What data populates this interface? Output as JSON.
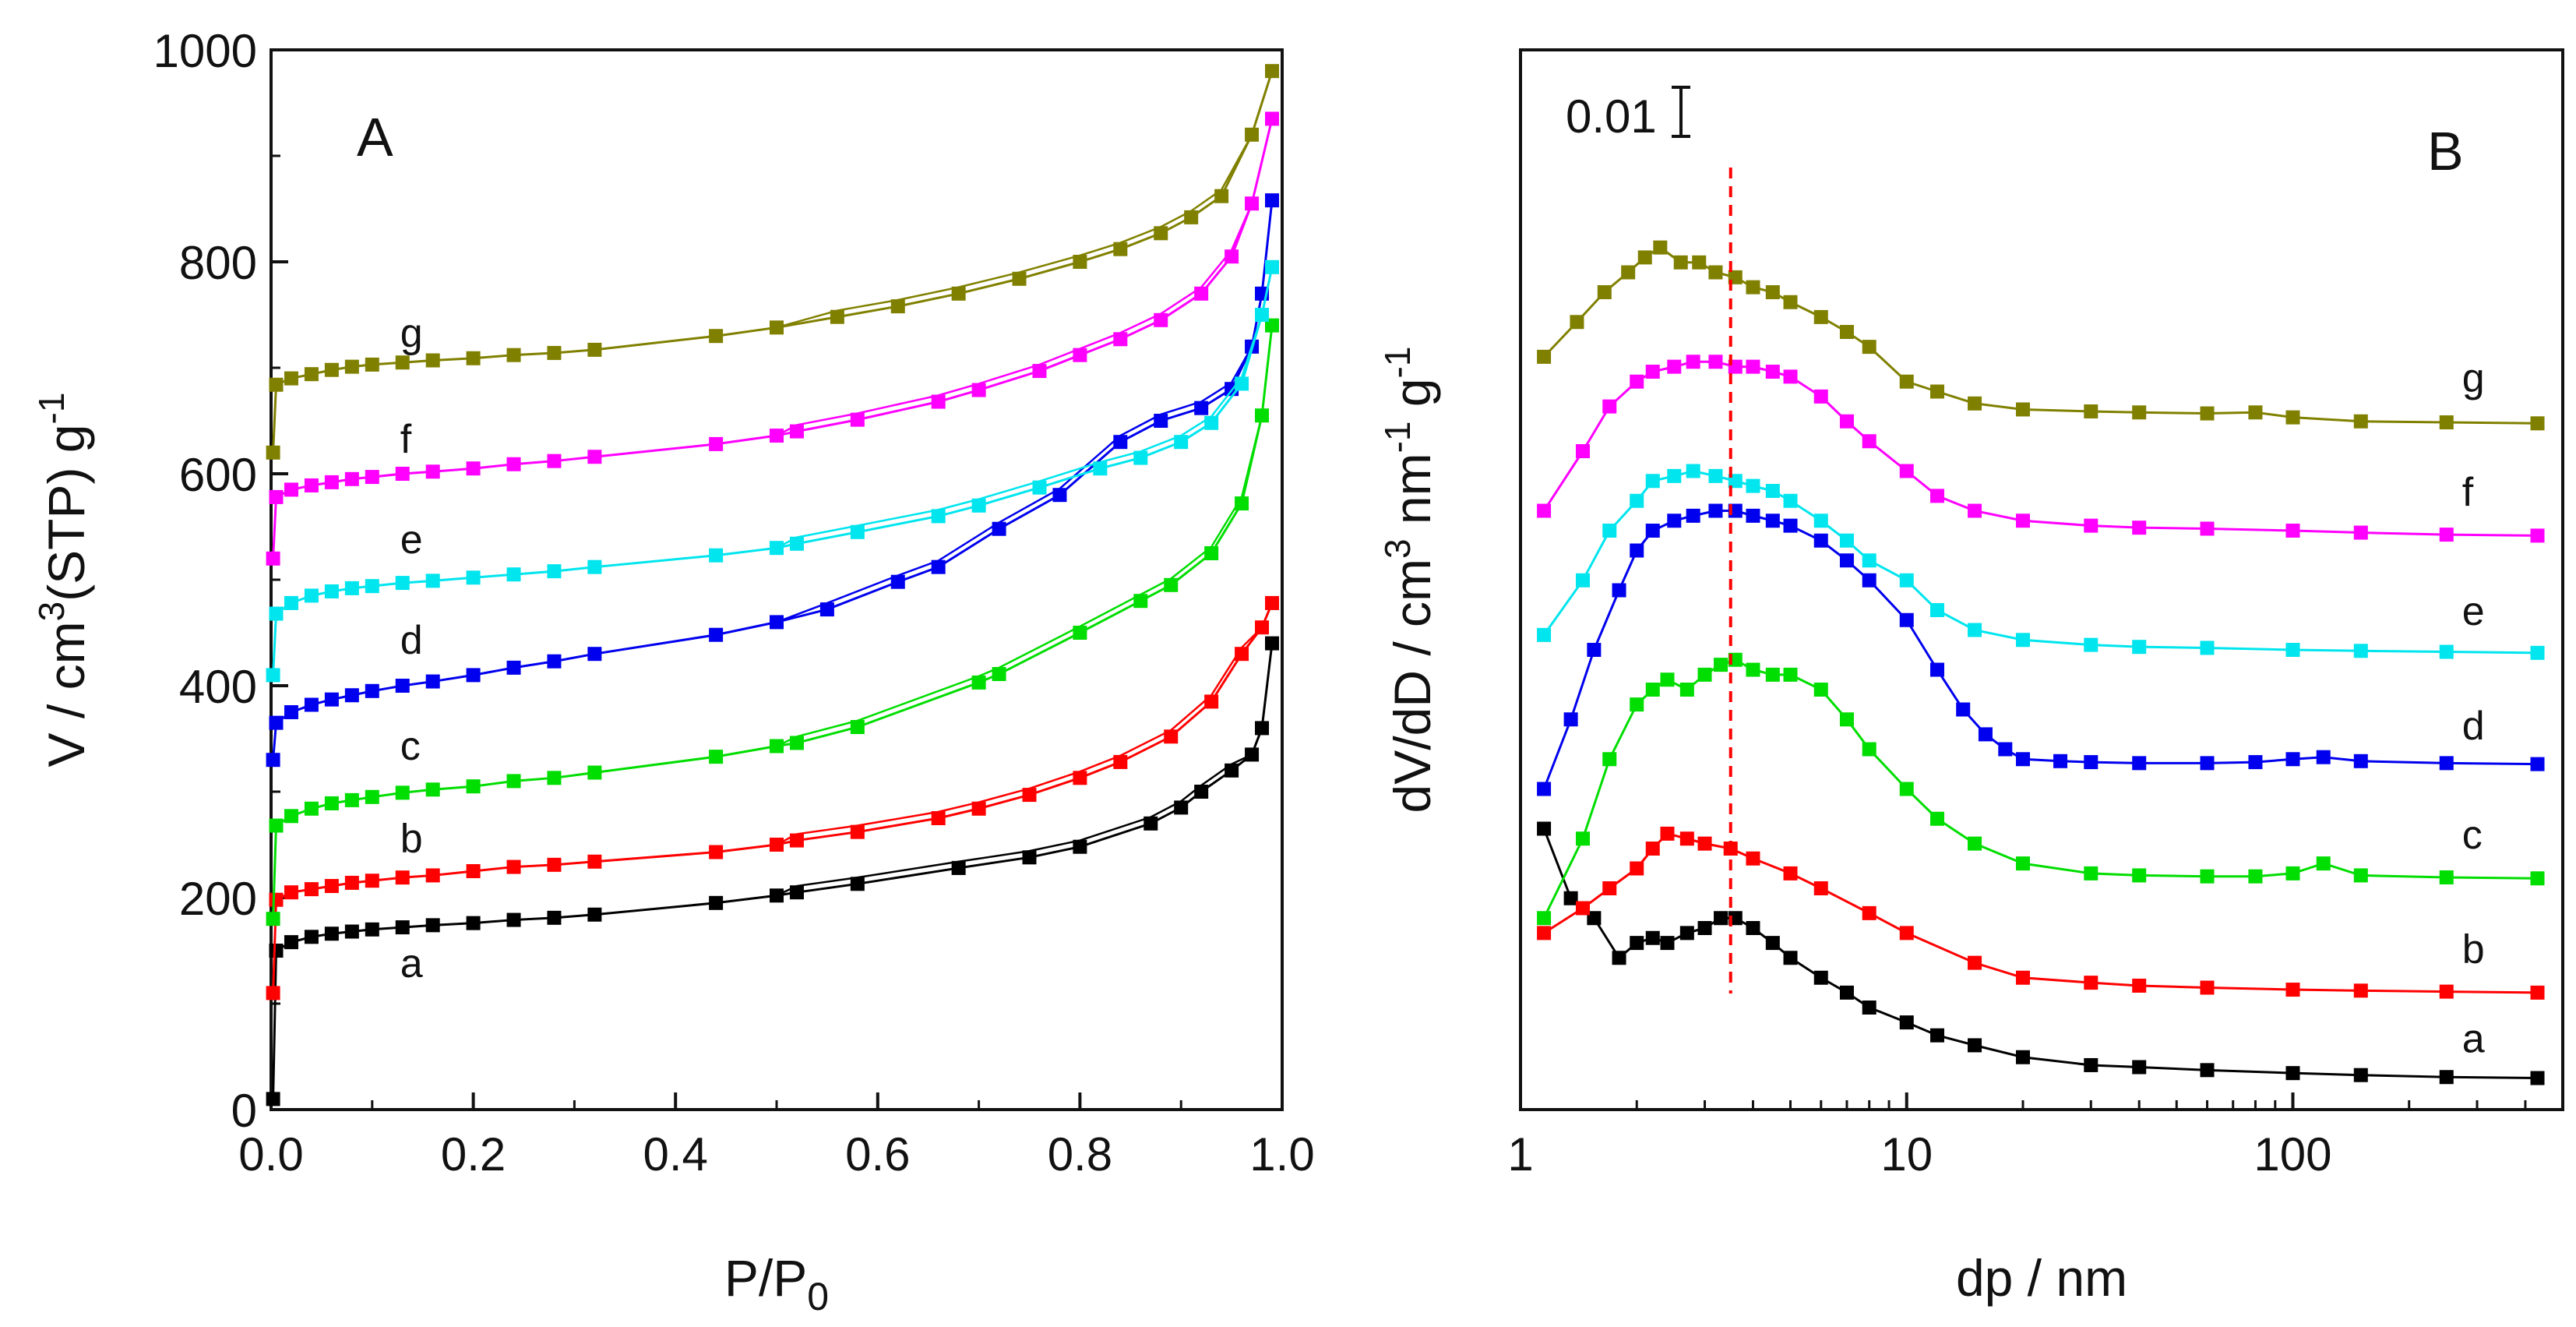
{
  "chart_data": [
    {
      "type": "line",
      "panel_label": "A",
      "xlabel_main": "P/P",
      "xlabel_sub": "0",
      "ylabel_prefix": "V / cm",
      "ylabel_sup1": "3",
      "ylabel_mid": "(STP) g",
      "ylabel_sup2": "-1",
      "xlim": [
        0.0,
        1.0
      ],
      "ylim": [
        0,
        1000
      ],
      "xticks": [
        0.0,
        0.2,
        0.4,
        0.6,
        0.8,
        1.0
      ],
      "xtick_labels": [
        "0.0",
        "0.2",
        "0.4",
        "0.6",
        "0.8",
        "1.0"
      ],
      "yticks": [
        0,
        200,
        400,
        600,
        800,
        1000
      ],
      "ytick_labels": [
        "0",
        "200",
        "400",
        "600",
        "800",
        "1000"
      ],
      "series": [
        {
          "name": "a",
          "color": "#000000",
          "x": [
            0.002,
            0.005,
            0.02,
            0.04,
            0.06,
            0.08,
            0.1,
            0.13,
            0.16,
            0.2,
            0.24,
            0.28,
            0.32,
            0.44,
            0.5,
            0.52,
            0.58,
            0.68,
            0.75,
            0.8,
            0.87,
            0.9,
            0.92,
            0.95,
            0.97,
            0.98,
            0.99
          ],
          "y": [
            10,
            150,
            158,
            163,
            166,
            168,
            170,
            172,
            174,
            176,
            179,
            181,
            184,
            195,
            202,
            205,
            213,
            228,
            238,
            248,
            270,
            285,
            300,
            320,
            335,
            360,
            440
          ]
        },
        {
          "name": "b",
          "color": "#ff0000",
          "x": [
            0.002,
            0.005,
            0.02,
            0.04,
            0.06,
            0.08,
            0.1,
            0.13,
            0.16,
            0.2,
            0.24,
            0.28,
            0.32,
            0.44,
            0.5,
            0.52,
            0.58,
            0.66,
            0.7,
            0.75,
            0.8,
            0.84,
            0.89,
            0.93,
            0.96,
            0.98,
            0.99
          ],
          "y": [
            110,
            198,
            205,
            208,
            211,
            214,
            216,
            219,
            221,
            225,
            229,
            231,
            234,
            243,
            250,
            254,
            262,
            275,
            284,
            297,
            313,
            328,
            352,
            385,
            430,
            455,
            478
          ]
        },
        {
          "name": "c",
          "color": "#00dd00",
          "x": [
            0.002,
            0.005,
            0.02,
            0.04,
            0.06,
            0.08,
            0.1,
            0.13,
            0.16,
            0.2,
            0.24,
            0.28,
            0.32,
            0.44,
            0.5,
            0.52,
            0.58,
            0.7,
            0.72,
            0.8,
            0.86,
            0.89,
            0.93,
            0.96,
            0.98,
            0.99
          ],
          "y": [
            180,
            268,
            277,
            284,
            289,
            292,
            295,
            299,
            302,
            305,
            310,
            313,
            318,
            333,
            343,
            346,
            361,
            403,
            411,
            450,
            480,
            495,
            525,
            572,
            655,
            740
          ]
        },
        {
          "name": "d",
          "color": "#0000ee",
          "x": [
            0.002,
            0.005,
            0.02,
            0.04,
            0.06,
            0.08,
            0.1,
            0.13,
            0.16,
            0.2,
            0.24,
            0.28,
            0.32,
            0.44,
            0.5,
            0.55,
            0.62,
            0.66,
            0.72,
            0.78,
            0.84,
            0.88,
            0.92,
            0.95,
            0.97,
            0.98,
            0.99
          ],
          "y": [
            330,
            365,
            375,
            382,
            387,
            391,
            395,
            400,
            404,
            410,
            417,
            423,
            430,
            448,
            460,
            472,
            498,
            512,
            548,
            580,
            630,
            650,
            662,
            680,
            720,
            770,
            858
          ]
        },
        {
          "name": "e",
          "color": "#00e5ee",
          "x": [
            0.002,
            0.005,
            0.02,
            0.04,
            0.06,
            0.08,
            0.1,
            0.13,
            0.16,
            0.2,
            0.24,
            0.28,
            0.32,
            0.44,
            0.5,
            0.52,
            0.58,
            0.66,
            0.7,
            0.76,
            0.82,
            0.86,
            0.9,
            0.93,
            0.96,
            0.98,
            0.99
          ],
          "y": [
            410,
            468,
            478,
            485,
            489,
            492,
            494,
            497,
            499,
            502,
            505,
            508,
            512,
            523,
            530,
            534,
            545,
            560,
            570,
            587,
            605,
            615,
            630,
            648,
            685,
            750,
            795
          ]
        },
        {
          "name": "f",
          "color": "#ff00ff",
          "x": [
            0.002,
            0.005,
            0.02,
            0.04,
            0.06,
            0.08,
            0.1,
            0.13,
            0.16,
            0.2,
            0.24,
            0.28,
            0.32,
            0.44,
            0.5,
            0.52,
            0.58,
            0.66,
            0.7,
            0.76,
            0.8,
            0.84,
            0.88,
            0.92,
            0.95,
            0.97,
            0.99
          ],
          "y": [
            520,
            578,
            585,
            589,
            592,
            595,
            597,
            600,
            602,
            605,
            609,
            612,
            616,
            628,
            636,
            640,
            651,
            668,
            679,
            697,
            712,
            727,
            745,
            770,
            805,
            855,
            935
          ]
        },
        {
          "name": "g",
          "color": "#808000",
          "x": [
            0.002,
            0.005,
            0.02,
            0.04,
            0.06,
            0.08,
            0.1,
            0.13,
            0.16,
            0.2,
            0.24,
            0.28,
            0.32,
            0.44,
            0.5,
            0.56,
            0.62,
            0.68,
            0.74,
            0.8,
            0.84,
            0.88,
            0.91,
            0.94,
            0.97,
            0.99
          ],
          "y": [
            620,
            684,
            690,
            694,
            698,
            701,
            703,
            705,
            707,
            709,
            712,
            714,
            717,
            730,
            738,
            748,
            758,
            770,
            784,
            800,
            812,
            827,
            842,
            862,
            920,
            980
          ]
        }
      ],
      "series_label_anchor": [
        {
          "name": "a",
          "x": 0.12,
          "y": 125
        },
        {
          "name": "b",
          "x": 0.12,
          "y": 243
        },
        {
          "name": "c",
          "x": 0.12,
          "y": 330
        },
        {
          "name": "d",
          "x": 0.12,
          "y": 430
        },
        {
          "name": "e",
          "x": 0.12,
          "y": 525
        },
        {
          "name": "f",
          "x": 0.12,
          "y": 620
        },
        {
          "name": "g",
          "x": 0.12,
          "y": 720
        }
      ]
    },
    {
      "type": "line",
      "panel_label": "B",
      "x_scale": "log",
      "xlabel": "dp / nm",
      "ylabel_prefix": "dV/dD / cm",
      "ylabel_sup1": "3",
      "ylabel_mid": " nm",
      "ylabel_sup2": "-1",
      "ylabel_end": " g",
      "ylabel_sup3": "-1",
      "scale_bar_label": "0.01",
      "xlim": [
        1,
        500
      ],
      "ylim": [
        0,
        100
      ],
      "xticks": [
        1,
        10,
        100
      ],
      "xtick_labels": [
        "1",
        "10",
        "100"
      ],
      "dashed_line_x": 3.5,
      "series": [
        {
          "name": "a",
          "color": "#000000",
          "x": [
            1.15,
            1.35,
            1.55,
            1.8,
            2.0,
            2.2,
            2.4,
            2.7,
            3.0,
            3.3,
            3.6,
            4.0,
            4.5,
            5.0,
            6.0,
            7.0,
            8.0,
            10,
            12,
            15,
            20,
            30,
            40,
            60,
            100,
            150,
            250,
            430
          ],
          "y": [
            26,
            19,
            17,
            13,
            14.5,
            15,
            14.5,
            15.5,
            16,
            17,
            17,
            16,
            14.5,
            13,
            11,
            9.5,
            8,
            6.5,
            5.2,
            4.2,
            3,
            2.2,
            2,
            1.7,
            1.4,
            1.2,
            1.0,
            0.9
          ]
        },
        {
          "name": "b",
          "color": "#ff0000",
          "x": [
            1.15,
            1.45,
            1.7,
            2.0,
            2.2,
            2.4,
            2.7,
            3.0,
            3.5,
            4.0,
            5.0,
            6.0,
            8.0,
            10,
            15,
            20,
            30,
            40,
            60,
            100,
            150,
            250,
            430
          ],
          "y": [
            15.5,
            18,
            20,
            22,
            24,
            25.5,
            25,
            24.5,
            24,
            23,
            21.5,
            20,
            17.5,
            15.5,
            12.5,
            11,
            10.5,
            10.2,
            10,
            9.8,
            9.7,
            9.6,
            9.5
          ]
        },
        {
          "name": "c",
          "color": "#00dd00",
          "x": [
            1.15,
            1.45,
            1.7,
            2.0,
            2.2,
            2.4,
            2.7,
            3.0,
            3.3,
            3.6,
            4.0,
            4.5,
            5.0,
            6.0,
            7.0,
            8.0,
            10,
            12,
            15,
            20,
            30,
            40,
            60,
            80,
            100,
            120,
            150,
            250,
            430
          ],
          "y": [
            17,
            25,
            33,
            38.5,
            40,
            41,
            40,
            41.5,
            42.5,
            43,
            42,
            41.5,
            41.5,
            40,
            37,
            34,
            30,
            27,
            24.5,
            22.5,
            21.5,
            21.3,
            21.2,
            21.2,
            21.5,
            22.5,
            21.3,
            21.1,
            21
          ]
        },
        {
          "name": "d",
          "color": "#0000ee",
          "x": [
            1.15,
            1.35,
            1.55,
            1.8,
            2.0,
            2.2,
            2.5,
            2.8,
            3.2,
            3.6,
            4.0,
            4.5,
            5.0,
            6.0,
            7.0,
            8.0,
            10,
            12,
            14,
            16,
            18,
            20,
            25,
            30,
            40,
            60,
            80,
            100,
            120,
            150,
            250,
            430
          ],
          "y": [
            30,
            37,
            44,
            50,
            54,
            56,
            57,
            57.5,
            58,
            58,
            57.5,
            57,
            56.5,
            55,
            53,
            51,
            47,
            42,
            38,
            35.5,
            34,
            33,
            32.8,
            32.7,
            32.6,
            32.6,
            32.7,
            33,
            33.2,
            32.8,
            32.6,
            32.5
          ]
        },
        {
          "name": "e",
          "color": "#00e5ee",
          "x": [
            1.15,
            1.45,
            1.7,
            2.0,
            2.2,
            2.5,
            2.8,
            3.2,
            3.6,
            4.0,
            4.5,
            5.0,
            6.0,
            7.0,
            8.0,
            10,
            12,
            15,
            20,
            30,
            40,
            60,
            100,
            150,
            250,
            430
          ],
          "y": [
            45.5,
            51,
            56,
            59,
            61,
            61.5,
            62,
            61.5,
            61,
            60.5,
            60,
            59,
            57,
            55,
            53,
            51,
            48,
            46,
            45,
            44.5,
            44.3,
            44.2,
            44,
            43.9,
            43.8,
            43.7
          ]
        },
        {
          "name": "f",
          "color": "#ff00ff",
          "x": [
            1.15,
            1.45,
            1.7,
            2.0,
            2.2,
            2.5,
            2.8,
            3.2,
            3.6,
            4.0,
            4.5,
            5.0,
            6.0,
            7.0,
            8.0,
            10,
            12,
            15,
            20,
            30,
            40,
            60,
            100,
            150,
            250,
            430
          ],
          "y": [
            58,
            64,
            68.5,
            71,
            72,
            72.5,
            73,
            73,
            72.5,
            72.5,
            72,
            71.5,
            69.5,
            67,
            65,
            62,
            59.5,
            58,
            57,
            56.5,
            56.3,
            56.2,
            56,
            55.8,
            55.6,
            55.5
          ]
        },
        {
          "name": "g",
          "color": "#808000",
          "x": [
            1.15,
            1.4,
            1.65,
            1.9,
            2.1,
            2.3,
            2.6,
            2.9,
            3.2,
            3.6,
            4.0,
            4.5,
            5.0,
            6.0,
            7.0,
            8.0,
            10,
            12,
            15,
            20,
            30,
            40,
            60,
            80,
            100,
            150,
            250,
            430
          ],
          "y": [
            73.5,
            77,
            80,
            82,
            83.5,
            84.5,
            83,
            83,
            82,
            81.5,
            80.5,
            80,
            79,
            77.5,
            76,
            74.5,
            71,
            70,
            68.8,
            68.2,
            68,
            67.9,
            67.8,
            67.9,
            67.4,
            67,
            66.9,
            66.8
          ]
        }
      ],
      "series_label_anchor": [
        {
          "name": "a",
          "x": 250,
          "y": 3.5
        },
        {
          "name": "b",
          "x": 250,
          "y": 12.5
        },
        {
          "name": "c",
          "x": 250,
          "y": 24
        },
        {
          "name": "d",
          "x": 250,
          "y": 35
        },
        {
          "name": "e",
          "x": 250,
          "y": 46.5
        },
        {
          "name": "f",
          "x": 250,
          "y": 58.5
        },
        {
          "name": "g",
          "x": 250,
          "y": 70
        }
      ]
    }
  ]
}
